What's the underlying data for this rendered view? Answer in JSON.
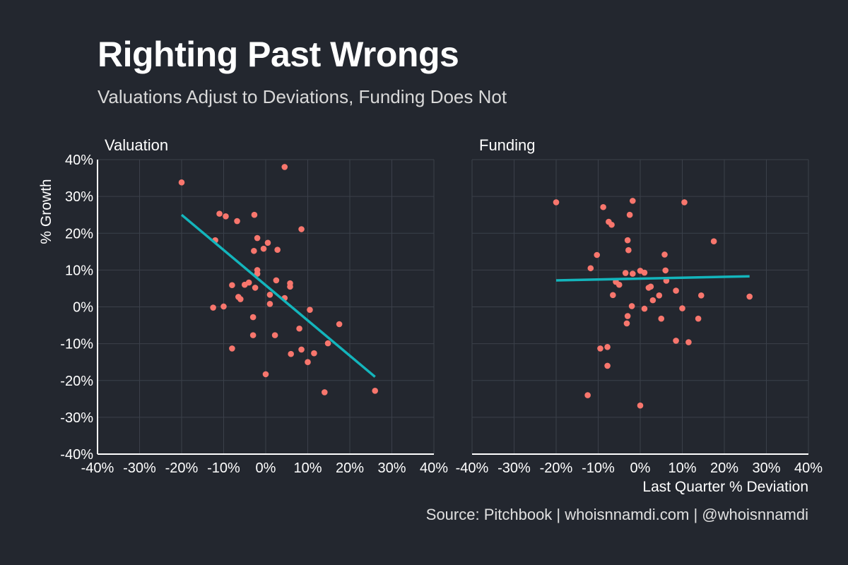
{
  "title": "Righting Past Wrongs",
  "subtitle": "Valuations Adjust to Deviations, Funding Does Not",
  "source": "Source: Pitchbook | whoisnnamdi.com | @whoisnnamdi",
  "colors": {
    "background": "#23272f",
    "grid": "#3b404a",
    "point": "#f8766d",
    "trend": "#13b5bc",
    "text": "#ffffff"
  },
  "chart_data": {
    "type": "scatter",
    "ylabel": "% Growth",
    "xlabel": "Last Quarter % Deviation",
    "xlim": [
      -0.4,
      0.4
    ],
    "ylim": [
      -0.4,
      0.4
    ],
    "x_ticks": [
      -0.4,
      -0.3,
      -0.2,
      -0.1,
      0,
      0.1,
      0.2,
      0.3,
      0.4
    ],
    "y_ticks": [
      -0.4,
      -0.3,
      -0.2,
      -0.1,
      0,
      0.1,
      0.2,
      0.3,
      0.4
    ],
    "x_tick_labels": [
      "-40%",
      "-30%",
      "-20%",
      "-10%",
      "0%",
      "10%",
      "20%",
      "30%",
      "40%"
    ],
    "y_tick_labels": [
      "-40%",
      "-30%",
      "-20%",
      "-10%",
      "0%",
      "10%",
      "20%",
      "30%",
      "40%"
    ],
    "grid": true,
    "panels": [
      {
        "name": "Valuation",
        "trend_line": [
          [
            -0.2,
            0.25
          ],
          [
            0.26,
            -0.19
          ]
        ],
        "points": [
          [
            -0.2,
            0.338
          ],
          [
            -0.11,
            0.253
          ],
          [
            -0.095,
            0.246
          ],
          [
            -0.12,
            0.181
          ],
          [
            -0.068,
            0.233
          ],
          [
            -0.027,
            0.25
          ],
          [
            -0.02,
            0.187
          ],
          [
            -0.005,
            0.158
          ],
          [
            0.005,
            0.174
          ],
          [
            0.045,
            0.38
          ],
          [
            0.085,
            0.211
          ],
          [
            -0.028,
            0.152
          ],
          [
            0.028,
            0.155
          ],
          [
            -0.02,
            0.1
          ],
          [
            -0.02,
            0.09
          ],
          [
            -0.04,
            0.066
          ],
          [
            -0.05,
            0.06
          ],
          [
            -0.08,
            0.059
          ],
          [
            -0.025,
            0.052
          ],
          [
            0.025,
            0.072
          ],
          [
            0.058,
            0.064
          ],
          [
            0.058,
            0.055
          ],
          [
            0.01,
            0.033
          ],
          [
            0.045,
            0.024
          ],
          [
            -0.065,
            0.027
          ],
          [
            -0.06,
            0.021
          ],
          [
            0.01,
            0.008
          ],
          [
            -0.125,
            -0.002
          ],
          [
            -0.1,
            0.001
          ],
          [
            0.105,
            -0.008
          ],
          [
            -0.03,
            -0.028
          ],
          [
            -0.03,
            -0.077
          ],
          [
            0.022,
            -0.077
          ],
          [
            0.08,
            -0.059
          ],
          [
            0.175,
            -0.047
          ],
          [
            0.148,
            -0.099
          ],
          [
            0.085,
            -0.116
          ],
          [
            0.115,
            -0.126
          ],
          [
            -0.08,
            -0.113
          ],
          [
            0.06,
            -0.128
          ],
          [
            0.1,
            -0.15
          ],
          [
            0.0,
            -0.183
          ],
          [
            0.14,
            -0.232
          ],
          [
            0.26,
            -0.228
          ]
        ]
      },
      {
        "name": "Funding",
        "trend_line": [
          [
            -0.2,
            0.072
          ],
          [
            0.26,
            0.083
          ]
        ],
        "points": [
          [
            -0.2,
            0.284
          ],
          [
            -0.088,
            0.271
          ],
          [
            -0.018,
            0.288
          ],
          [
            0.105,
            0.284
          ],
          [
            -0.025,
            0.25
          ],
          [
            -0.075,
            0.231
          ],
          [
            -0.068,
            0.223
          ],
          [
            -0.03,
            0.181
          ],
          [
            0.175,
            0.178
          ],
          [
            -0.028,
            0.154
          ],
          [
            -0.103,
            0.141
          ],
          [
            0.058,
            0.142
          ],
          [
            -0.118,
            0.105
          ],
          [
            0.06,
            0.099
          ],
          [
            -0.035,
            0.092
          ],
          [
            -0.018,
            0.09
          ],
          [
            0.0,
            0.098
          ],
          [
            0.01,
            0.093
          ],
          [
            -0.058,
            0.068
          ],
          [
            -0.05,
            0.06
          ],
          [
            0.062,
            0.071
          ],
          [
            0.025,
            0.055
          ],
          [
            0.02,
            0.052
          ],
          [
            0.085,
            0.044
          ],
          [
            0.045,
            0.031
          ],
          [
            0.145,
            0.031
          ],
          [
            -0.065,
            0.032
          ],
          [
            0.03,
            0.018
          ],
          [
            0.26,
            0.028
          ],
          [
            -0.02,
            0.002
          ],
          [
            0.01,
            -0.005
          ],
          [
            0.1,
            -0.004
          ],
          [
            -0.03,
            -0.025
          ],
          [
            -0.032,
            -0.045
          ],
          [
            0.05,
            -0.032
          ],
          [
            0.138,
            -0.032
          ],
          [
            0.085,
            -0.092
          ],
          [
            0.115,
            -0.096
          ],
          [
            -0.095,
            -0.113
          ],
          [
            -0.078,
            -0.109
          ],
          [
            -0.078,
            -0.16
          ],
          [
            -0.125,
            -0.24
          ],
          [
            0.0,
            -0.268
          ]
        ]
      }
    ]
  }
}
